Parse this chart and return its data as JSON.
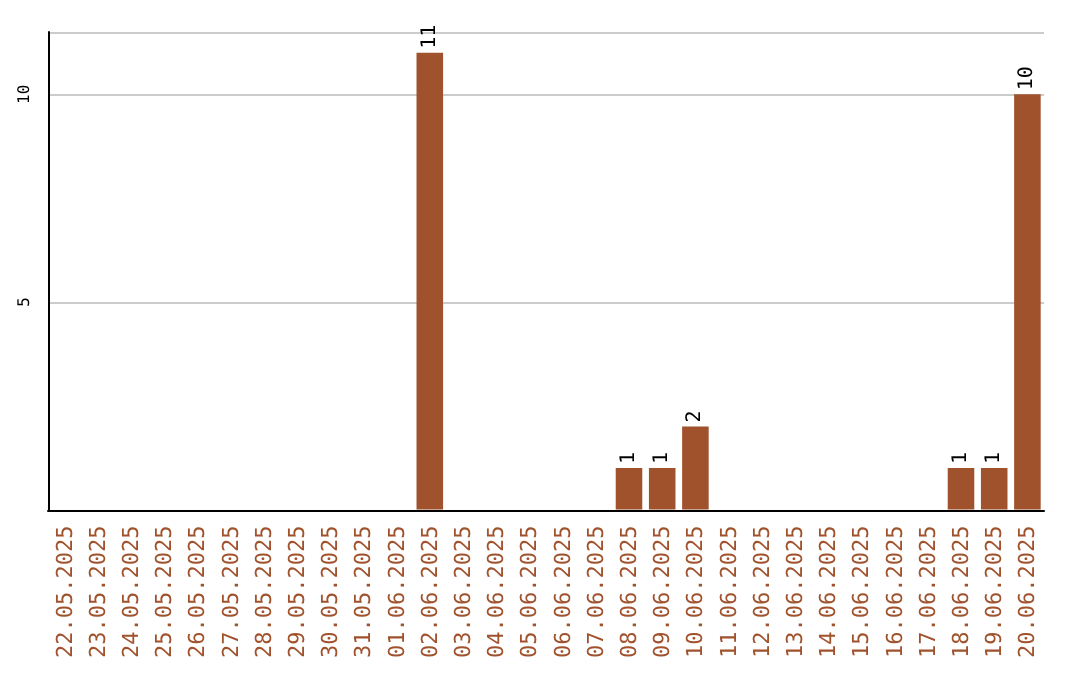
{
  "chart_data": {
    "type": "bar",
    "categories": [
      "22.05.2025",
      "23.05.2025",
      "24.05.2025",
      "25.05.2025",
      "26.05.2025",
      "27.05.2025",
      "28.05.2025",
      "29.05.2025",
      "30.05.2025",
      "31.05.2025",
      "01.06.2025",
      "02.06.2025",
      "03.06.2025",
      "04.06.2025",
      "05.06.2025",
      "06.06.2025",
      "07.06.2025",
      "08.06.2025",
      "09.06.2025",
      "10.06.2025",
      "11.06.2025",
      "12.06.2025",
      "13.06.2025",
      "14.06.2025",
      "15.06.2025",
      "16.06.2025",
      "17.06.2025",
      "18.06.2025",
      "19.06.2025",
      "20.06.2025"
    ],
    "values": [
      0,
      0,
      0,
      0,
      0,
      0,
      0,
      0,
      0,
      0,
      0,
      11,
      0,
      0,
      0,
      0,
      0,
      1,
      1,
      2,
      0,
      0,
      0,
      0,
      0,
      0,
      0,
      1,
      1,
      10
    ],
    "value_labels": [
      null,
      null,
      null,
      null,
      null,
      null,
      null,
      null,
      null,
      null,
      null,
      "11",
      null,
      null,
      null,
      null,
      null,
      "1",
      "1",
      "2",
      null,
      null,
      null,
      null,
      null,
      null,
      null,
      "1",
      "1",
      "10"
    ],
    "color": "#a0522d",
    "ylim": [
      0,
      11.5
    ],
    "yticks": [
      5,
      10
    ],
    "grid": "y"
  }
}
